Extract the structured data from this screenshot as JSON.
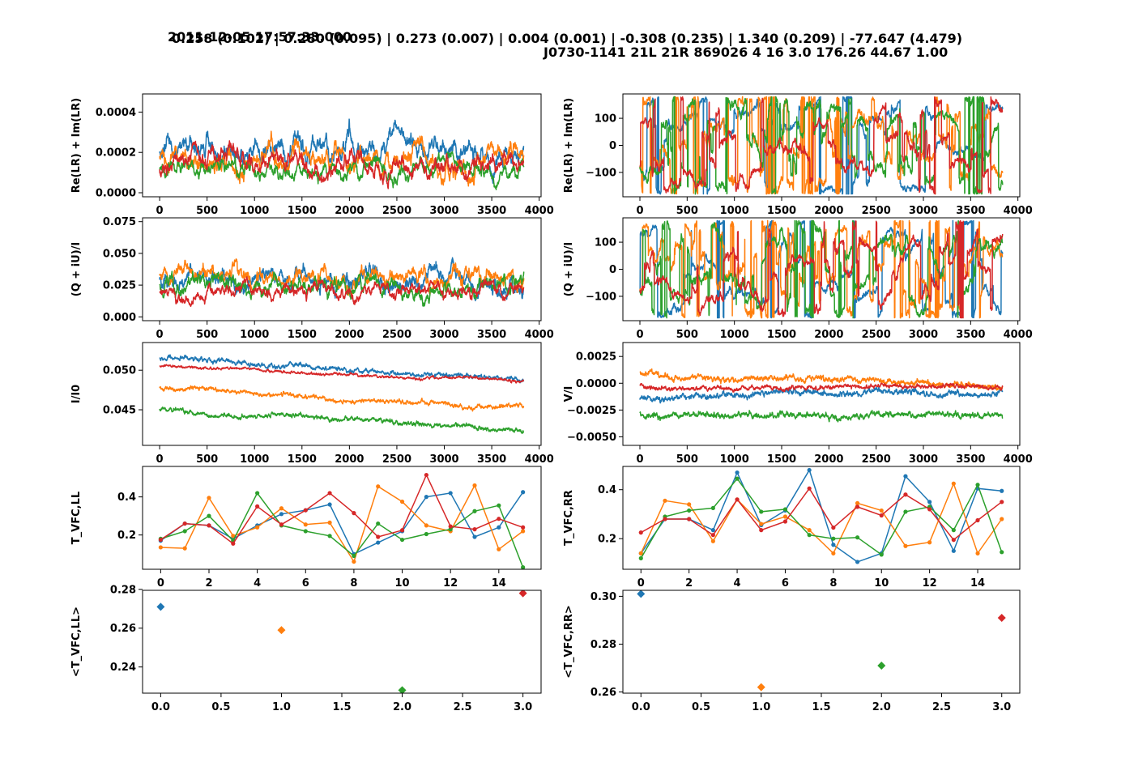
{
  "header": {
    "timestamp": "2011-12-05 17:57:33.000",
    "scan_info": "J0730-1141 21L 21R 869026 4 16 3.0 176.26 44.67 1.00",
    "stats": "0.258 (0.102) | 0.280 (0.095) | 0.273 (0.007) | 0.004 (0.001) | -0.308 (0.235) | 1.340 (0.209) | -77.647 (4.479)"
  },
  "colors": [
    "#1f77b4",
    "#ff7f0e",
    "#2ca02c",
    "#d62728"
  ],
  "chart_data": [
    {
      "id": "lr-amplitude",
      "type": "line",
      "ylabel": "Re(LR) + Im(LR)",
      "xlim": [
        -180,
        4020
      ],
      "ylim": [
        -2e-05,
        0.00049
      ],
      "xticks": [
        0,
        500,
        1000,
        1500,
        2000,
        2500,
        3000,
        3500,
        4000
      ],
      "yticks": [
        0.0,
        0.0002,
        0.0004
      ],
      "ytick_labels": [
        "0.0000",
        "0.0002",
        "0.0004"
      ],
      "n": 3840,
      "generated": {
        "kind": "random-walk",
        "seeds": [
          11,
          12,
          13,
          14
        ],
        "base": [
          0.0002,
          0.00018,
          0.00012,
          0.00012
        ],
        "amp": [
          0.00013,
          0.00013,
          9e-05,
          0.00011
        ],
        "lo": [
          0.0,
          0.0,
          0.0,
          0.0
        ],
        "hi": [
          0.00046,
          0.00048,
          0.00037,
          0.00045
        ]
      }
    },
    {
      "id": "lr-phase",
      "type": "line",
      "ylabel": "Re(LR) + Im(LR)",
      "xlim": [
        -180,
        4020
      ],
      "ylim": [
        -190,
        190
      ],
      "xticks": [
        0,
        500,
        1000,
        1500,
        2000,
        2500,
        3000,
        3500,
        4000
      ],
      "yticks": [
        -100,
        0,
        100
      ],
      "ytick_labels": [
        "−100",
        "0",
        "100"
      ],
      "n": 3840,
      "generated": {
        "kind": "phase",
        "seeds": [
          21,
          22,
          23,
          24
        ]
      }
    },
    {
      "id": "qu-amplitude",
      "type": "line",
      "ylabel": "(Q + iU)/I",
      "xlim": [
        -180,
        4020
      ],
      "ylim": [
        -0.003,
        0.078
      ],
      "xticks": [
        0,
        500,
        1000,
        1500,
        2000,
        2500,
        3000,
        3500,
        4000
      ],
      "yticks": [
        0.0,
        0.025,
        0.05,
        0.075
      ],
      "ytick_labels": [
        "0.000",
        "0.025",
        "0.050",
        "0.075"
      ],
      "n": 3840,
      "generated": {
        "kind": "random-walk",
        "seeds": [
          31,
          32,
          33,
          34
        ],
        "base": [
          0.03,
          0.032,
          0.025,
          0.02
        ],
        "amp": [
          0.018,
          0.016,
          0.016,
          0.012
        ],
        "lo": [
          0.0,
          0.0,
          0.0,
          0.0
        ],
        "hi": [
          0.072,
          0.07,
          0.073,
          0.055
        ]
      }
    },
    {
      "id": "qu-phase",
      "type": "line",
      "ylabel": "(Q + iU)/I",
      "xlim": [
        -180,
        4020
      ],
      "ylim": [
        -190,
        190
      ],
      "xticks": [
        0,
        500,
        1000,
        1500,
        2000,
        2500,
        3000,
        3500,
        4000
      ],
      "yticks": [
        -100,
        0,
        100
      ],
      "ytick_labels": [
        "−100",
        "0",
        "100"
      ],
      "n": 3840,
      "generated": {
        "kind": "phase",
        "seeds": [
          41,
          42,
          43,
          44
        ]
      }
    },
    {
      "id": "stokes-i",
      "type": "line",
      "ylabel": "I/I0",
      "xlim": [
        -180,
        4020
      ],
      "ylim": [
        0.0405,
        0.0535
      ],
      "xticks": [
        0,
        500,
        1000,
        1500,
        2000,
        2500,
        3000,
        3500,
        4000
      ],
      "yticks": [
        0.045,
        0.05
      ],
      "ytick_labels": [
        "0.045",
        "0.050"
      ],
      "n": 3840,
      "generated": {
        "kind": "drift",
        "seeds": [
          51,
          52,
          53,
          54
        ],
        "start": [
          0.0515,
          0.0478,
          0.0452,
          0.0505
        ],
        "end": [
          0.0485,
          0.045,
          0.0422,
          0.0485
        ],
        "amp": [
          0.0008,
          0.0008,
          0.0008,
          0.0005
        ]
      }
    },
    {
      "id": "stokes-v",
      "type": "line",
      "ylabel": "V/I",
      "xlim": [
        -180,
        4020
      ],
      "ylim": [
        -0.0058,
        0.0038
      ],
      "xticks": [
        0,
        500,
        1000,
        1500,
        2000,
        2500,
        3000,
        3500,
        4000
      ],
      "yticks": [
        -0.005,
        -0.0025,
        0.0,
        0.0025
      ],
      "ytick_labels": [
        "−0.0050",
        "−0.0025",
        "0.0000",
        "0.0025"
      ],
      "n": 3840,
      "generated": {
        "kind": "drift",
        "seeds": [
          61,
          62,
          63,
          64
        ],
        "start": [
          -0.0015,
          0.001,
          -0.0028,
          -0.0002
        ],
        "end": [
          -0.0008,
          -0.0003,
          -0.0028,
          -0.0005
        ],
        "amp": [
          0.0008,
          0.0008,
          0.0008,
          0.0006
        ]
      }
    },
    {
      "id": "tvfc-ll",
      "type": "line",
      "markers": true,
      "ylabel": "T_VFC,LL",
      "xlim": [
        -0.75,
        15.75
      ],
      "ylim": [
        0.02,
        0.56
      ],
      "xticks": [
        0,
        2,
        4,
        6,
        8,
        10,
        12,
        14
      ],
      "yticks": [
        0.2,
        0.4
      ],
      "ytick_labels": [
        "0.2",
        "0.4"
      ],
      "x": [
        0,
        1,
        2,
        3,
        4,
        5,
        6,
        7,
        8,
        9,
        10,
        11,
        12,
        13,
        14,
        15
      ],
      "series": [
        {
          "values": [
            0.17,
            0.26,
            0.25,
            0.18,
            0.25,
            0.31,
            0.33,
            0.36,
            0.1,
            0.16,
            0.22,
            0.4,
            0.42,
            0.19,
            0.24,
            0.425
          ]
        },
        {
          "values": [
            0.135,
            0.13,
            0.395,
            0.195,
            0.24,
            0.34,
            0.255,
            0.265,
            0.06,
            0.455,
            0.375,
            0.25,
            0.22,
            0.46,
            0.125,
            0.22
          ]
        },
        {
          "values": [
            0.18,
            0.22,
            0.3,
            0.17,
            0.42,
            0.25,
            0.22,
            0.195,
            0.09,
            0.26,
            0.175,
            0.205,
            0.23,
            0.325,
            0.355,
            0.03
          ]
        },
        {
          "values": [
            0.175,
            0.26,
            0.25,
            0.155,
            0.35,
            0.255,
            0.33,
            0.42,
            0.315,
            0.19,
            0.225,
            0.515,
            0.245,
            0.23,
            0.285,
            0.24
          ]
        }
      ]
    },
    {
      "id": "tvfc-rr",
      "type": "line",
      "markers": true,
      "ylabel": "T_VFC,RR",
      "xlim": [
        -0.75,
        15.75
      ],
      "ylim": [
        0.075,
        0.495
      ],
      "xticks": [
        0,
        2,
        4,
        6,
        8,
        10,
        12,
        14
      ],
      "yticks": [
        0.2,
        0.4
      ],
      "ytick_labels": [
        "0.2",
        "0.4"
      ],
      "x": [
        0,
        1,
        2,
        3,
        4,
        5,
        6,
        7,
        8,
        9,
        10,
        11,
        12,
        13,
        14,
        15
      ],
      "series": [
        {
          "values": [
            0.14,
            0.28,
            0.28,
            0.235,
            0.47,
            0.255,
            0.315,
            0.48,
            0.175,
            0.105,
            0.14,
            0.455,
            0.35,
            0.15,
            0.405,
            0.395
          ]
        },
        {
          "values": [
            0.14,
            0.355,
            0.34,
            0.19,
            0.36,
            0.26,
            0.29,
            0.235,
            0.14,
            0.345,
            0.315,
            0.17,
            0.185,
            0.425,
            0.14,
            0.28
          ]
        },
        {
          "values": [
            0.12,
            0.29,
            0.315,
            0.325,
            0.445,
            0.31,
            0.32,
            0.215,
            0.2,
            0.205,
            0.135,
            0.31,
            0.33,
            0.235,
            0.42,
            0.145
          ]
        },
        {
          "values": [
            0.225,
            0.28,
            0.28,
            0.215,
            0.36,
            0.235,
            0.27,
            0.405,
            0.245,
            0.33,
            0.295,
            0.38,
            0.32,
            0.195,
            0.275,
            0.35
          ]
        }
      ]
    },
    {
      "id": "mean-tvfc-ll",
      "type": "scatter",
      "ylabel": "<T_VFC,LL>",
      "xlim": [
        -0.15,
        3.15
      ],
      "ylim": [
        0.2265,
        0.2795
      ],
      "xticks": [
        0.0,
        0.5,
        1.0,
        1.5,
        2.0,
        2.5,
        3.0
      ],
      "xtick_labels": [
        "0.0",
        "0.5",
        "1.0",
        "1.5",
        "2.0",
        "2.5",
        "3.0"
      ],
      "yticks": [
        0.24,
        0.26,
        0.28
      ],
      "ytick_labels": [
        "0.24",
        "0.26",
        "0.28"
      ],
      "x": [
        0,
        1,
        2,
        3
      ],
      "values": [
        0.271,
        0.259,
        0.228,
        0.278
      ]
    },
    {
      "id": "mean-tvfc-rr",
      "type": "scatter",
      "ylabel": "<T_VFC,RR>",
      "xlim": [
        -0.15,
        3.15
      ],
      "ylim": [
        0.2595,
        0.3025
      ],
      "xticks": [
        0.0,
        0.5,
        1.0,
        1.5,
        2.0,
        2.5,
        3.0
      ],
      "xtick_labels": [
        "0.0",
        "0.5",
        "1.0",
        "1.5",
        "2.0",
        "2.5",
        "3.0"
      ],
      "yticks": [
        0.26,
        0.28,
        0.3
      ],
      "ytick_labels": [
        "0.26",
        "0.28",
        "0.30"
      ],
      "x": [
        0,
        1,
        2,
        3
      ],
      "values": [
        0.301,
        0.262,
        0.271,
        0.291
      ]
    }
  ]
}
